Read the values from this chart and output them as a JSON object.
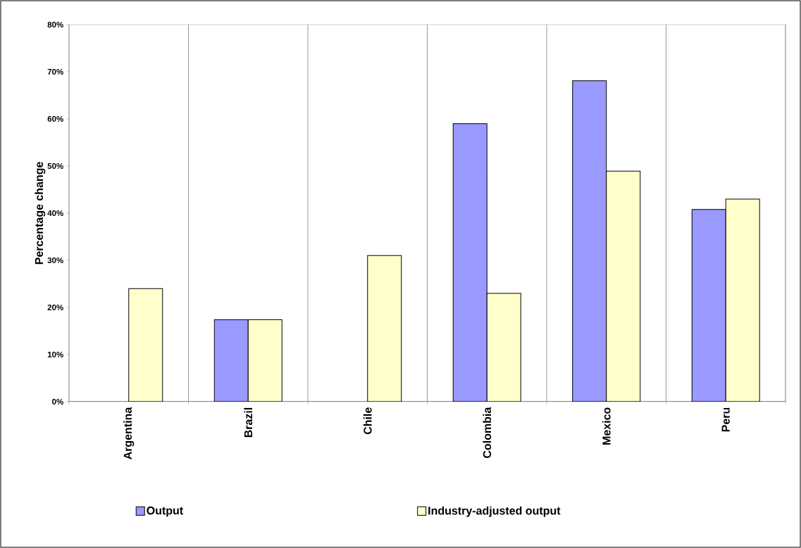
{
  "chart_data": {
    "type": "bar",
    "ylabel": "Percentage change",
    "categories": [
      "Argentina",
      "Brazil",
      "Chile",
      "Colombia",
      "Mexico",
      "Peru"
    ],
    "series": [
      {
        "name": "Output",
        "color": "#9999ff",
        "values": [
          null,
          17.4,
          null,
          59.0,
          68.1,
          40.8
        ]
      },
      {
        "name": "Industry-adjusted output",
        "color": "#ffffcc",
        "values": [
          24.0,
          17.4,
          31.0,
          23.0,
          48.9,
          43.0
        ]
      }
    ],
    "ylim": [
      0,
      80
    ],
    "yticks": [
      {
        "value": 0,
        "label": "0%"
      },
      {
        "value": 10,
        "label": "10%"
      },
      {
        "value": 20,
        "label": "20%"
      },
      {
        "value": 30,
        "label": "30%"
      },
      {
        "value": 40,
        "label": "40%"
      },
      {
        "value": 50,
        "label": "50%"
      },
      {
        "value": 60,
        "label": "60%"
      },
      {
        "value": 70,
        "label": "70%"
      },
      {
        "value": 80,
        "label": "80%"
      }
    ],
    "grid": "x",
    "legend": "bottom"
  }
}
